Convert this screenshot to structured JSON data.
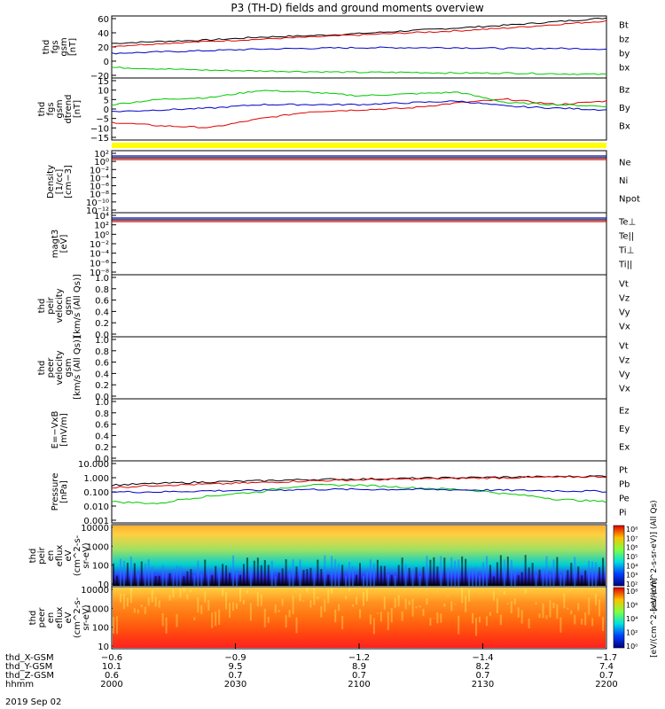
{
  "title": "P3 (TH-D) fields and ground moments overview",
  "colors": {
    "black": "#000000",
    "red": "#e00000",
    "blue": "#0000c8",
    "green": "#00c800",
    "yellow": "#ffff00"
  },
  "chart_data": [
    {
      "type": "line",
      "ylabel": [
        "thd",
        "fgs",
        "gsm",
        "[nT]"
      ],
      "yticks": [
        "60",
        "40",
        "20",
        "0",
        "−20"
      ],
      "ytick_values": [
        60,
        40,
        20,
        0,
        -20
      ],
      "ylim": [
        -25,
        63
      ],
      "x": [
        0,
        0.1,
        0.2,
        0.3,
        0.4,
        0.5,
        0.6,
        0.7,
        0.8,
        0.9,
        1
      ],
      "series": [
        {
          "name": "Bt",
          "color": "#000000",
          "values": [
            24,
            27,
            29,
            33,
            35,
            38,
            42,
            46,
            50,
            55,
            60
          ]
        },
        {
          "name": "bz",
          "color": "#e00000",
          "values": [
            20,
            24,
            27,
            30,
            33,
            36,
            39,
            42,
            46,
            51,
            56
          ]
        },
        {
          "name": "by",
          "color": "#0000c8",
          "values": [
            10,
            12,
            14,
            16,
            17,
            18,
            18,
            18,
            17,
            17,
            16
          ]
        },
        {
          "name": "bx",
          "color": "#00c800",
          "values": [
            -10,
            -12,
            -14,
            -15,
            -16,
            -17,
            -17,
            -18,
            -18,
            -19,
            -20
          ]
        }
      ]
    },
    {
      "type": "line",
      "ylabel": [
        "thd",
        "fgs",
        "gsm",
        "dtrend",
        "[nT]"
      ],
      "yticks": [
        "15",
        "10",
        "5",
        "0",
        "−5",
        "−10",
        "−15"
      ],
      "ytick_values": [
        15,
        10,
        5,
        0,
        -5,
        -10,
        -15
      ],
      "ylim": [
        -18,
        17
      ],
      "x": [
        0,
        0.1,
        0.2,
        0.3,
        0.4,
        0.5,
        0.6,
        0.7,
        0.8,
        0.9,
        1
      ],
      "series": [
        {
          "name": "Bz",
          "color": "#e00000",
          "values": [
            -8,
            -10,
            -11,
            -6,
            -2,
            -1,
            0,
            3,
            5,
            2,
            4
          ]
        },
        {
          "name": "By",
          "color": "#00c800",
          "values": [
            2,
            5,
            6,
            10,
            9,
            7,
            8,
            9,
            3,
            2,
            1
          ]
        },
        {
          "name": "Bx",
          "color": "#0000c8",
          "values": [
            -2,
            -1,
            0,
            2,
            2,
            2,
            3,
            4,
            1,
            0,
            -1
          ]
        }
      ]
    },
    {
      "type": "bar",
      "name": "flag",
      "color": "#ffff00"
    },
    {
      "type": "line",
      "ylabel": [
        "Density",
        "[1/cc]",
        "[cm−3]"
      ],
      "yticks": [
        "10²",
        "10⁰",
        "10⁻²",
        "10⁻⁴",
        "10⁻⁶",
        "10⁻⁸",
        "10⁻¹⁰",
        "10⁻¹²"
      ],
      "legend": [
        {
          "name": "Ne",
          "color": "#e00000"
        },
        {
          "name": "Ni",
          "color": "#000000"
        },
        {
          "name": "Npot",
          "color": "#0000c8"
        }
      ]
    },
    {
      "type": "line",
      "ylabel": [
        "magt3",
        "[eV]"
      ],
      "yticks": [
        "10⁴",
        "10²",
        "10⁰",
        "10⁻²",
        "10⁻⁴",
        "10⁻⁶",
        "10⁻⁸"
      ],
      "legend": [
        {
          "name": "Te⊥",
          "color": "#e00000"
        },
        {
          "name": "Te||",
          "color": "#000000"
        },
        {
          "name": "Ti⊥",
          "color": "#0000c8"
        },
        {
          "name": "Ti||",
          "color": "#00c800"
        }
      ]
    },
    {
      "type": "line",
      "ylabel": [
        "thd",
        "peir",
        "velocity",
        "gsm",
        "[km/s (All Qs)]"
      ],
      "yticks": [
        "1.0",
        "0.8",
        "0.6",
        "0.4",
        "0.2",
        "0.0"
      ],
      "legend": [
        {
          "name": "Vt",
          "color": "#000000"
        },
        {
          "name": "Vz",
          "color": "#e00000"
        },
        {
          "name": "Vy",
          "color": "#00c800"
        },
        {
          "name": "Vx",
          "color": "#0000c8"
        }
      ]
    },
    {
      "type": "line",
      "ylabel": [
        "thd",
        "peer",
        "velocity",
        "gsm",
        "[km/s (All Qs)]"
      ],
      "yticks": [
        "1.0",
        "0.8",
        "0.6",
        "0.4",
        "0.2",
        "0.0"
      ],
      "legend": [
        {
          "name": "Vt",
          "color": "#000000"
        },
        {
          "name": "Vz",
          "color": "#e00000"
        },
        {
          "name": "Vy",
          "color": "#00c800"
        },
        {
          "name": "Vx",
          "color": "#0000c8"
        }
      ]
    },
    {
      "type": "line",
      "ylabel": [
        "E=−VxB",
        "[mV/m]"
      ],
      "yticks": [
        "1.0",
        "0.8",
        "0.6",
        "0.4",
        "0.2",
        "0.0"
      ],
      "legend": [
        {
          "name": "Ez",
          "color": "#e00000"
        },
        {
          "name": "Ey",
          "color": "#00c800"
        },
        {
          "name": "Ex",
          "color": "#0000c8"
        }
      ]
    },
    {
      "type": "line",
      "ylabel": [
        "Pressure",
        "[nPa]"
      ],
      "yticks": [
        "10.000",
        "1.000",
        "0.100",
        "0.010",
        "0.001"
      ],
      "log": true,
      "x": [
        0,
        0.1,
        0.2,
        0.3,
        0.4,
        0.5,
        0.6,
        0.7,
        0.8,
        0.9,
        1
      ],
      "series": [
        {
          "name": "Pt",
          "color": "#000000",
          "values": [
            0.3,
            0.4,
            0.5,
            0.6,
            0.75,
            0.8,
            0.9,
            1.0,
            1.1,
            1.2,
            1.3
          ]
        },
        {
          "name": "Pb",
          "color": "#e00000",
          "values": [
            0.2,
            0.3,
            0.35,
            0.45,
            0.6,
            0.7,
            0.8,
            0.9,
            1.0,
            1.1,
            1.2
          ]
        },
        {
          "name": "Pe",
          "color": "#00c800",
          "values": [
            0.02,
            0.015,
            0.05,
            0.1,
            0.3,
            0.3,
            0.2,
            0.15,
            0.07,
            0.03,
            0.02
          ]
        },
        {
          "name": "Pi",
          "color": "#0000c8",
          "values": [
            0.1,
            0.1,
            0.12,
            0.13,
            0.15,
            0.15,
            0.15,
            0.14,
            0.13,
            0.12,
            0.11
          ]
        }
      ]
    },
    {
      "type": "heatmap",
      "ylabel": [
        "thd",
        "peir",
        "en",
        "eflux",
        "eV",
        "(cm^2-s-",
        "sr-eV)"
      ],
      "yticks": [
        "10000",
        "1000",
        "100",
        "10"
      ],
      "colorbar": [
        "10⁸",
        "10⁷",
        "10⁶",
        "10⁵",
        "10⁴",
        "10³",
        "10²"
      ],
      "colorbar_label": "[eV/(cm^2-s-sr-eV)] (All Qs)"
    },
    {
      "type": "heatmap",
      "ylabel": [
        "thd",
        "peer",
        "en",
        "eflux",
        "eV",
        "(cm^2-s-",
        "sr-eV)"
      ],
      "yticks": [
        "10000",
        "1000",
        "100",
        "10"
      ],
      "colorbar": [
        "10⁸",
        "10⁶",
        "10⁴",
        "10²",
        "10⁰"
      ],
      "colorbar_label": "[eV/(cm^2-s-sr-eV)]"
    }
  ],
  "xaxis": {
    "rows": [
      {
        "label": "thd_X-GSM",
        "values": [
          "−0.6",
          "−0.9",
          "−1.2",
          "−1.4",
          "−1.7"
        ]
      },
      {
        "label": "thd_Y-GSM",
        "values": [
          "10.1",
          "9.5",
          "8.9",
          "8.2",
          "7.4"
        ]
      },
      {
        "label": "thd_Z-GSM",
        "values": [
          "0.6",
          "0.7",
          "0.7",
          "0.7",
          "0.7"
        ]
      },
      {
        "label": "hhmm",
        "values": [
          "2000",
          "2030",
          "2100",
          "2130",
          "2200"
        ]
      }
    ],
    "date": "2019 Sep 02"
  }
}
